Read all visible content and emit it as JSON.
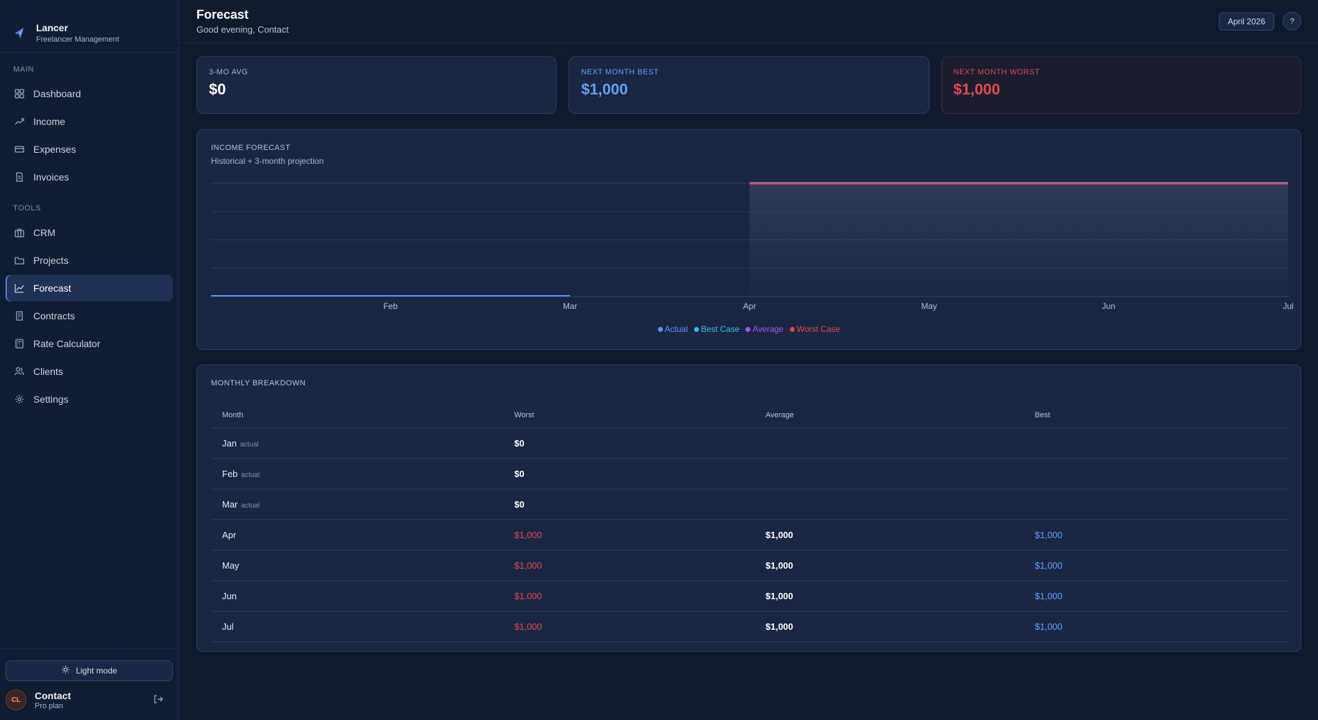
{
  "brand": {
    "name": "Lancer",
    "subtitle": "Freelancer Management"
  },
  "nav": {
    "main_title": "MAIN",
    "main_items": [
      {
        "label": "Dashboard",
        "icon": "grid-icon"
      },
      {
        "label": "Income",
        "icon": "trending-up-icon"
      },
      {
        "label": "Expenses",
        "icon": "card-icon"
      },
      {
        "label": "Invoices",
        "icon": "document-icon"
      }
    ],
    "tools_title": "TOOLS",
    "tools_items": [
      {
        "label": "CRM",
        "icon": "briefcase-icon"
      },
      {
        "label": "Projects",
        "icon": "folder-icon"
      },
      {
        "label": "Forecast",
        "icon": "line-chart-icon",
        "active": true
      },
      {
        "label": "Contracts",
        "icon": "contract-icon"
      },
      {
        "label": "Rate Calculator",
        "icon": "calculator-icon"
      },
      {
        "label": "Clients",
        "icon": "users-icon"
      },
      {
        "label": "Settings",
        "icon": "gear-icon"
      }
    ]
  },
  "sidebar_bottom": {
    "light_mode_label": "Light mode",
    "user": {
      "initials": "CL",
      "name": "Contact",
      "plan": "Pro plan"
    }
  },
  "header": {
    "title": "Forecast",
    "greeting": "Good evening, Contact",
    "month_label": "April 2026",
    "help_label": "?"
  },
  "stats": [
    {
      "label": "3-MO AVG",
      "value": "$0",
      "color": "#ffffff"
    },
    {
      "label": "NEXT MONTH BEST",
      "value": "$1,000",
      "color": "#5fa0ff"
    },
    {
      "label": "NEXT MONTH WORST",
      "value": "$1,000",
      "color": "#e5484d"
    }
  ],
  "chart_panel": {
    "title": "INCOME FORECAST",
    "subtitle": "Historical + 3-month projection"
  },
  "chart_data": {
    "type": "line",
    "categories": [
      "Jan",
      "Feb",
      "Mar",
      "Apr",
      "May",
      "Jun",
      "Jul"
    ],
    "tick_labels": [
      "Feb",
      "Mar",
      "Apr",
      "May",
      "Jun",
      "Jul"
    ],
    "series": [
      {
        "name": "Actual",
        "values": [
          0,
          0,
          0,
          null,
          null,
          null,
          null
        ],
        "color": "#5f8fff"
      },
      {
        "name": "Best Case",
        "values": [
          null,
          null,
          null,
          1000,
          1000,
          1000,
          1000
        ],
        "color": "#38bdf8"
      },
      {
        "name": "Average",
        "values": [
          null,
          null,
          null,
          1000,
          1000,
          1000,
          1000
        ],
        "color": "#a855f7"
      },
      {
        "name": "Worst Case",
        "values": [
          null,
          null,
          null,
          1000,
          1000,
          1000,
          1000
        ],
        "color": "#ef4444"
      }
    ],
    "ylim": [
      0,
      1000
    ],
    "grid": true,
    "legend": "bottom"
  },
  "table_panel": {
    "title": "MONTHLY BREAKDOWN",
    "headers": [
      "Month",
      "Worst",
      "Average",
      "Best"
    ],
    "actual_tag": "actual",
    "rows": [
      {
        "month": "Jan",
        "actual": true,
        "worst": "$0",
        "average": "",
        "best": ""
      },
      {
        "month": "Feb",
        "actual": true,
        "worst": "$0",
        "average": "",
        "best": ""
      },
      {
        "month": "Mar",
        "actual": true,
        "worst": "$0",
        "average": "",
        "best": ""
      },
      {
        "month": "Apr",
        "actual": false,
        "worst": "$1,000",
        "average": "$1,000",
        "best": "$1,000"
      },
      {
        "month": "May",
        "actual": false,
        "worst": "$1,000",
        "average": "$1,000",
        "best": "$1,000"
      },
      {
        "month": "Jun",
        "actual": false,
        "worst": "$1,000",
        "average": "$1,000",
        "best": "$1,000"
      },
      {
        "month": "Jul",
        "actual": false,
        "worst": "$1,000",
        "average": "$1,000",
        "best": "$1,000"
      }
    ]
  }
}
